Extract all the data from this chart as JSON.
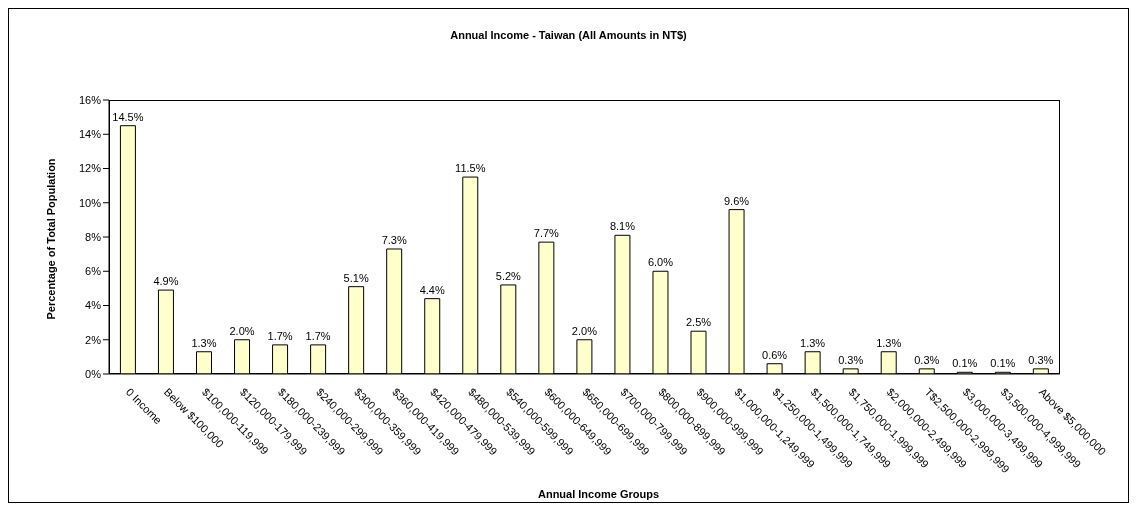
{
  "chart_data": {
    "type": "bar",
    "title": "Annual Income - Taiwan (All Amounts in NT$)",
    "xlabel": "Annual Income Groups",
    "ylabel": "Percentage of Total Population",
    "categories": [
      "0 Income",
      "Below $100,000",
      "$100,000-119,999",
      "$120,000-179,999",
      "$180,000-239,999",
      "$240,000-299,999",
      "$300,000-359,999",
      "$360,000-419,999",
      "$420,000-479,999",
      "$480,000-539,999",
      "$540,000-599,999",
      "$600,000-649,999",
      "$650,000-699,999",
      "$700,000-799,999",
      "$800,000-899,999",
      "$900,000-999,999",
      "$1,000,000-1,249,999",
      "$1,250,000-1,499,999",
      "$1,500,000-1,749,999",
      "$1,750,000-1,999,999",
      "$2,000,000-2,499,999",
      "T$2,500,000-2,999,999",
      "$3,000,000-3,499,999",
      "$3,500,000-4,999,999",
      "Above $5,000,000"
    ],
    "values": [
      14.5,
      4.9,
      1.3,
      2.0,
      1.7,
      1.7,
      5.1,
      7.3,
      4.4,
      11.5,
      5.2,
      7.7,
      2.0,
      8.1,
      6.0,
      2.5,
      9.6,
      0.6,
      1.3,
      0.3,
      1.3,
      0.3,
      0.1,
      0.1,
      0.3
    ],
    "value_labels": [
      "14.5%",
      "4.9%",
      "1.3%",
      "2.0%",
      "1.7%",
      "1.7%",
      "5.1%",
      "7.3%",
      "4.4%",
      "11.5%",
      "5.2%",
      "7.7%",
      "2.0%",
      "8.1%",
      "6.0%",
      "2.5%",
      "9.6%",
      "0.6%",
      "1.3%",
      "0.3%",
      "1.3%",
      "0.3%",
      "0.1%",
      "0.1%",
      "0.3%"
    ],
    "color": "#ffffcc",
    "ylim": [
      0,
      16
    ],
    "yticks": [
      {
        "value": 0,
        "label": "0%"
      },
      {
        "value": 2,
        "label": "2%"
      },
      {
        "value": 4,
        "label": "4%"
      },
      {
        "value": 6,
        "label": "6%"
      },
      {
        "value": 8,
        "label": "8%"
      },
      {
        "value": 10,
        "label": "10%"
      },
      {
        "value": 12,
        "label": "12%"
      },
      {
        "value": 14,
        "label": "14%"
      },
      {
        "value": 16,
        "label": "16%"
      }
    ],
    "grid": false
  }
}
